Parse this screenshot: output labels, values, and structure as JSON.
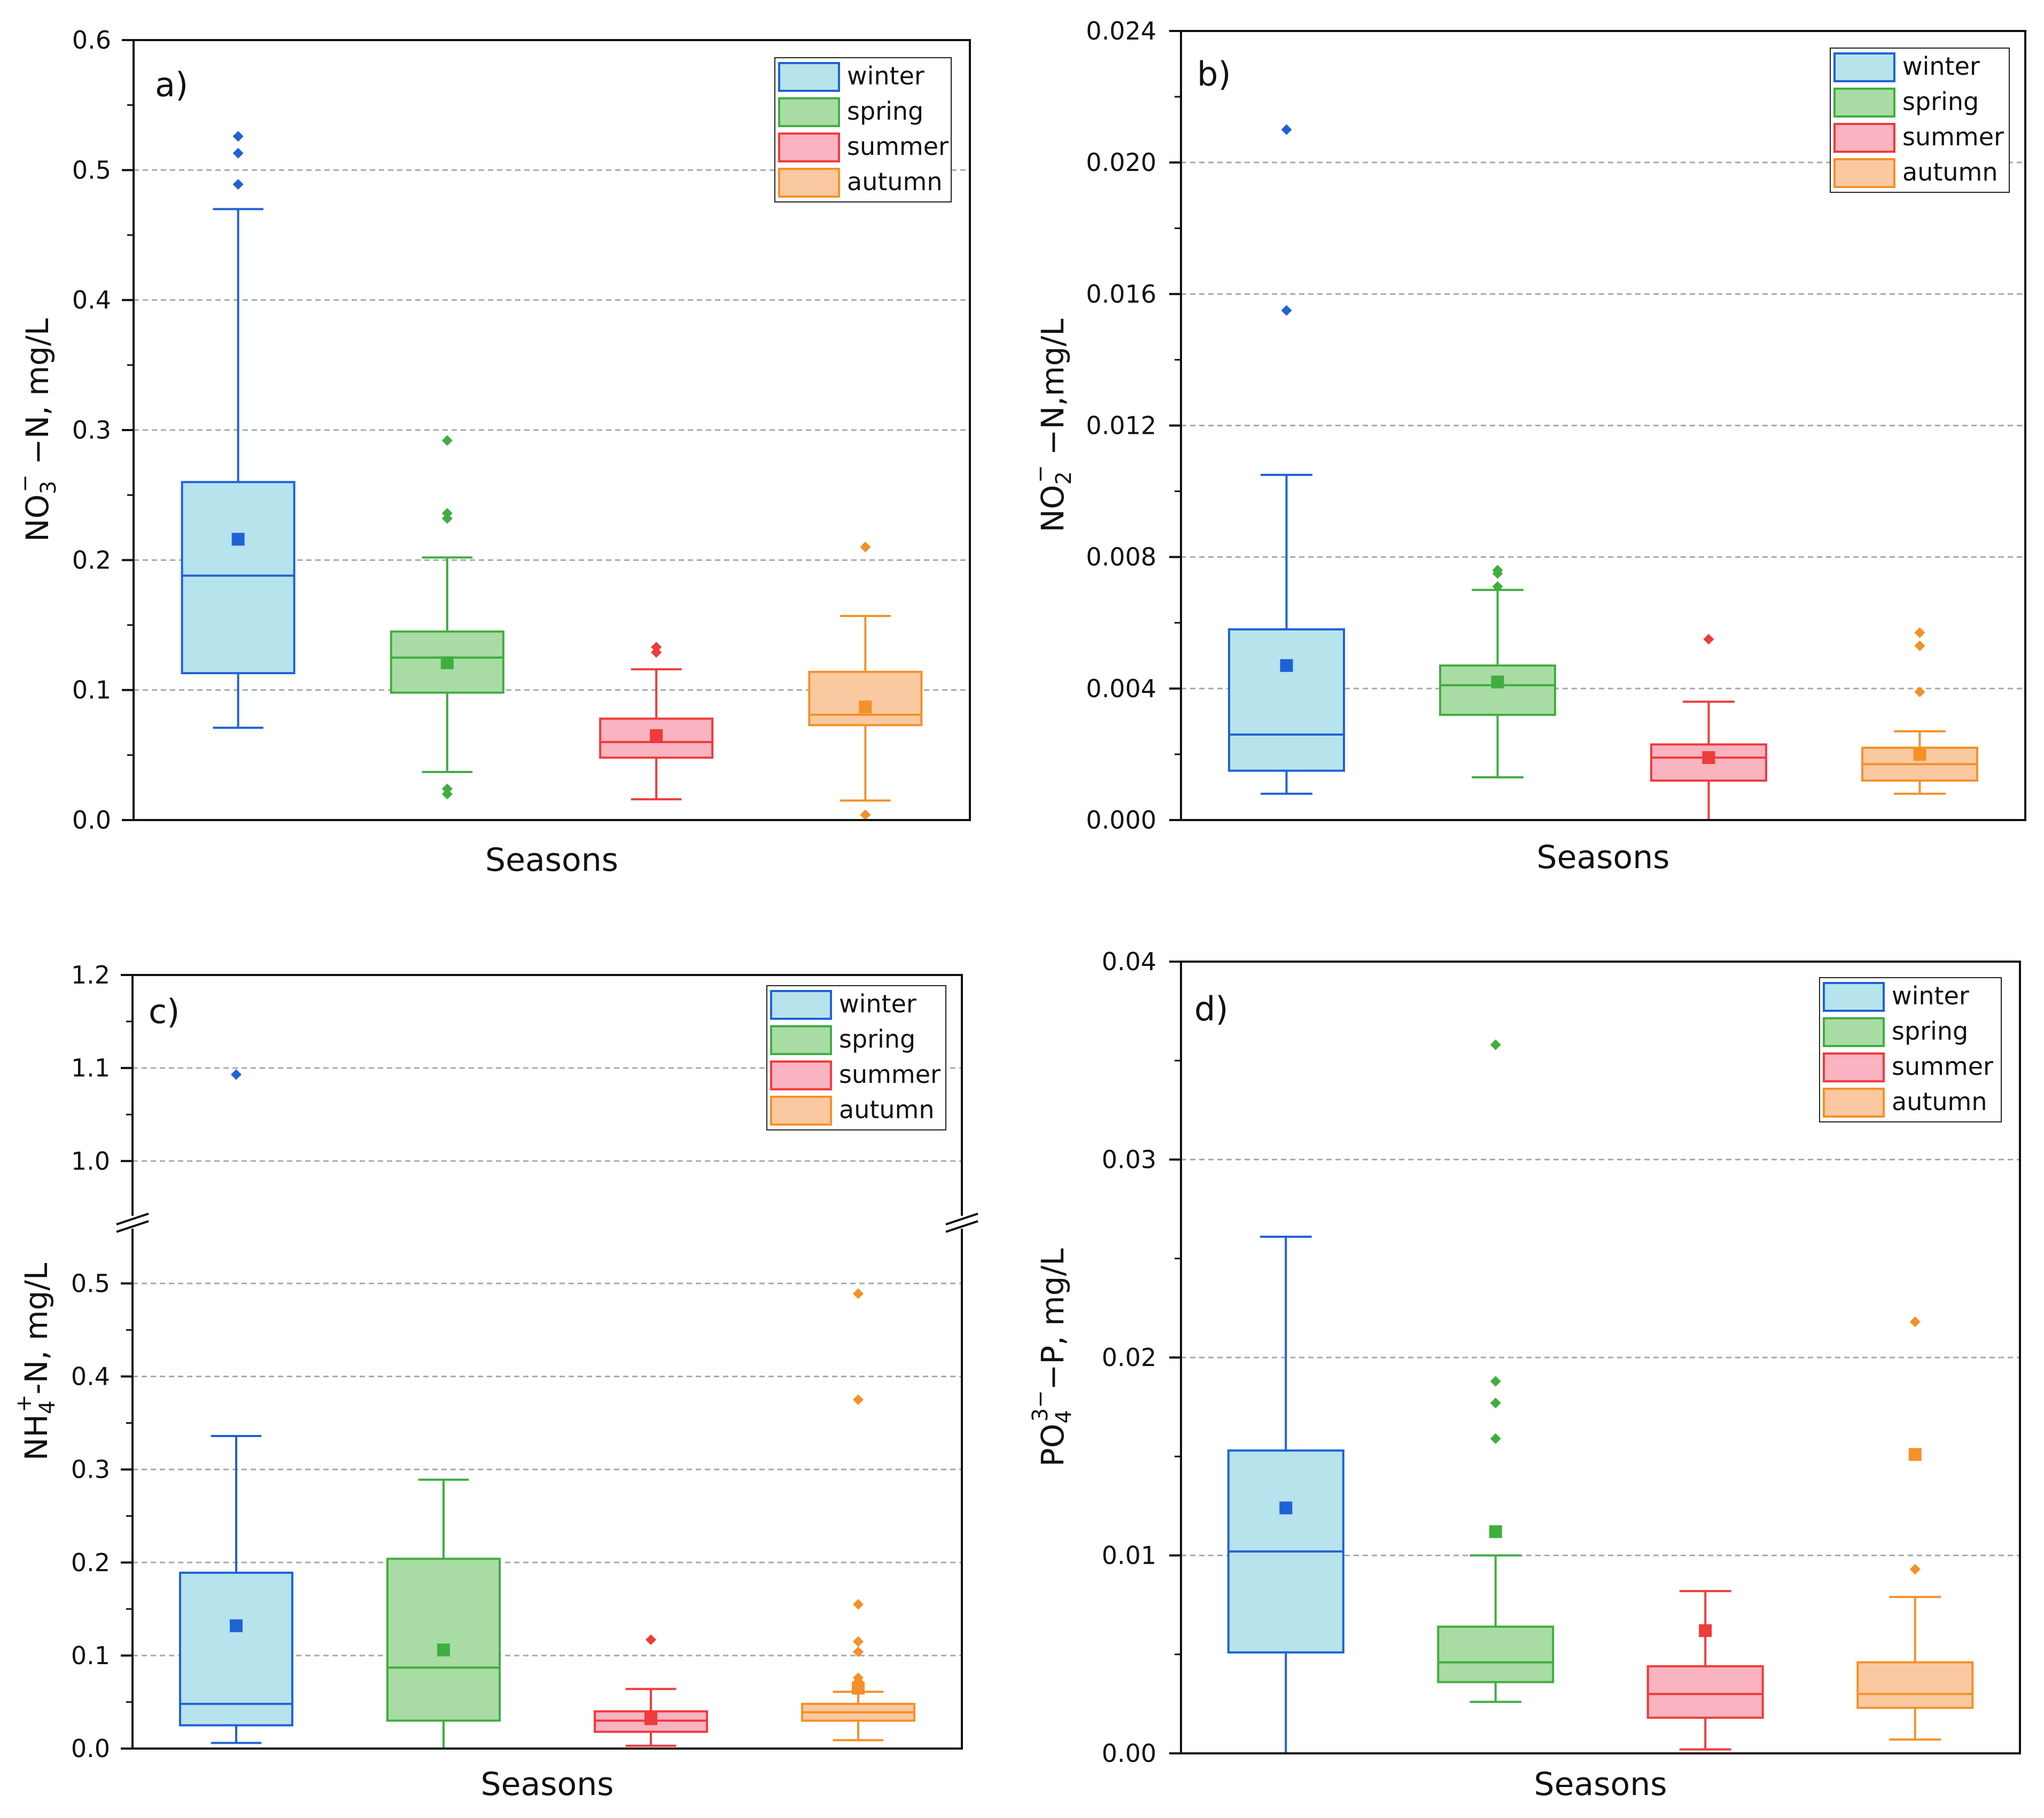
{
  "colors": {
    "winter": {
      "stroke": "#1f62d6",
      "fill": "#b7e3ec"
    },
    "spring": {
      "stroke": "#3fae3f",
      "fill": "#a9dca5"
    },
    "summer": {
      "stroke": "#ef3b3b",
      "fill": "#f9b3c1"
    },
    "autumn": {
      "stroke": "#f59028",
      "fill": "#fbc9a1"
    },
    "axis": "#111111",
    "grid": "#aaaaaa"
  },
  "chart_data": [
    {
      "type": "box",
      "panel_label": "a)",
      "title": "",
      "xlabel": "Seasons",
      "ylabel": "NO3− −N, mg/L",
      "ylabel_parts": {
        "base": "NO",
        "sub": "3",
        "sup": "−",
        "rest": " −N, mg/L"
      },
      "ylim": [
        0,
        0.6
      ],
      "yticks": [
        0.0,
        0.1,
        0.2,
        0.3,
        0.4,
        0.5,
        0.6
      ],
      "ytick_labels": [
        "0.0",
        "0.1",
        "0.2",
        "0.3",
        "0.4",
        "0.5",
        "0.6"
      ],
      "minor_ticks": [
        0.05,
        0.15,
        0.25,
        0.35,
        0.45,
        0.55
      ],
      "gridlines": [
        0.1,
        0.2,
        0.3,
        0.4,
        0.5
      ],
      "legend": {
        "position": "top-right",
        "entries": [
          "winter",
          "spring",
          "summer",
          "autumn"
        ]
      },
      "series": [
        {
          "name": "winter",
          "whisker_low": 0.071,
          "q1": 0.113,
          "median": 0.188,
          "q3": 0.26,
          "whisker_high": 0.47,
          "mean": 0.216,
          "outliers": [
            0.489,
            0.513,
            0.526
          ]
        },
        {
          "name": "spring",
          "whisker_low": 0.037,
          "q1": 0.098,
          "median": 0.125,
          "q3": 0.145,
          "whisker_high": 0.202,
          "mean": 0.121,
          "outliers": [
            0.02,
            0.024,
            0.232,
            0.236,
            0.292
          ]
        },
        {
          "name": "summer",
          "whisker_low": 0.016,
          "q1": 0.048,
          "median": 0.06,
          "q3": 0.078,
          "whisker_high": 0.116,
          "mean": 0.065,
          "outliers": [
            0.129,
            0.133
          ]
        },
        {
          "name": "autumn",
          "whisker_low": 0.015,
          "q1": 0.073,
          "median": 0.081,
          "q3": 0.114,
          "whisker_high": 0.157,
          "mean": 0.087,
          "outliers": [
            0.004,
            0.21
          ]
        }
      ]
    },
    {
      "type": "box",
      "panel_label": "b)",
      "title": "",
      "xlabel": "Seasons",
      "ylabel": "NO2− −N,mg/L",
      "ylabel_parts": {
        "base": "NO",
        "sub": "2",
        "sup": "−",
        "rest": " −N,mg/L"
      },
      "ylim": [
        0,
        0.024
      ],
      "yticks": [
        0.0,
        0.004,
        0.008,
        0.012,
        0.016,
        0.02,
        0.024
      ],
      "ytick_labels": [
        "0.000",
        "0.004",
        "0.008",
        "0.012",
        "0.016",
        "0.020",
        "0.024"
      ],
      "minor_ticks": [
        0.002,
        0.006,
        0.01,
        0.014,
        0.018,
        0.022
      ],
      "gridlines": [
        0.004,
        0.008,
        0.012,
        0.016,
        0.02
      ],
      "legend": {
        "position": "top-right",
        "entries": [
          "winter",
          "spring",
          "summer",
          "autumn"
        ]
      },
      "series": [
        {
          "name": "winter",
          "whisker_low": 0.0008,
          "q1": 0.0015,
          "median": 0.0026,
          "q3": 0.0058,
          "whisker_high": 0.0105,
          "mean": 0.0047,
          "outliers": [
            0.0155,
            0.021
          ]
        },
        {
          "name": "spring",
          "whisker_low": 0.0013,
          "q1": 0.0032,
          "median": 0.0041,
          "q3": 0.0047,
          "whisker_high": 0.007,
          "mean": 0.0042,
          "outliers": [
            0.0071,
            0.0075,
            0.0076
          ]
        },
        {
          "name": "summer",
          "whisker_low": 0.0,
          "q1": 0.0012,
          "median": 0.0019,
          "q3": 0.0023,
          "whisker_high": 0.0036,
          "mean": 0.0019,
          "outliers": [
            0.0055
          ]
        },
        {
          "name": "autumn",
          "whisker_low": 0.0008,
          "q1": 0.0012,
          "median": 0.0017,
          "q3": 0.0022,
          "whisker_high": 0.0027,
          "mean": 0.002,
          "outliers": [
            0.0039,
            0.0053,
            0.0057
          ]
        }
      ]
    },
    {
      "type": "box",
      "panel_label": "c)",
      "title": "",
      "xlabel": "Seasons",
      "ylabel": "NH4+-N, mg/L",
      "ylabel_parts": {
        "base": "NH",
        "sub": "4",
        "sup": "+",
        "rest": "-N, mg/L"
      },
      "ylim": [
        0,
        1.2
      ],
      "axis_break": [
        0.55,
        0.95
      ],
      "yticks": [
        0.0,
        0.1,
        0.2,
        0.3,
        0.4,
        0.5,
        1.0,
        1.1,
        1.2
      ],
      "ytick_labels": [
        "0.0",
        "0.1",
        "0.2",
        "0.3",
        "0.4",
        "0.5",
        "1.0",
        "1.1",
        "1.2"
      ],
      "minor_ticks": [
        0.05,
        0.15,
        0.25,
        0.35,
        0.45,
        1.05,
        1.15
      ],
      "gridlines": [
        0.1,
        0.2,
        0.3,
        0.4,
        0.5,
        1.0,
        1.1
      ],
      "legend": {
        "position": "top-right",
        "entries": [
          "winter",
          "spring",
          "summer",
          "autumn"
        ]
      },
      "series": [
        {
          "name": "winter",
          "whisker_low": 0.006,
          "q1": 0.025,
          "median": 0.048,
          "q3": 0.189,
          "whisker_high": 0.336,
          "mean": 0.132,
          "outliers": [
            1.093
          ]
        },
        {
          "name": "spring",
          "whisker_low": 0.0,
          "q1": 0.03,
          "median": 0.087,
          "q3": 0.204,
          "whisker_high": 0.289,
          "mean": 0.106,
          "outliers": []
        },
        {
          "name": "summer",
          "whisker_low": 0.003,
          "q1": 0.018,
          "median": 0.03,
          "q3": 0.04,
          "whisker_high": 0.064,
          "mean": 0.032,
          "outliers": [
            0.117
          ]
        },
        {
          "name": "autumn",
          "whisker_low": 0.009,
          "q1": 0.03,
          "median": 0.039,
          "q3": 0.048,
          "whisker_high": 0.061,
          "mean": 0.065,
          "outliers": [
            0.068,
            0.072,
            0.076,
            0.104,
            0.115,
            0.155,
            0.375,
            0.489
          ]
        }
      ]
    },
    {
      "type": "box",
      "panel_label": "d)",
      "title": "",
      "xlabel": "Seasons",
      "ylabel": "PO43−−P, mg/L",
      "ylabel_parts": {
        "base": "PO",
        "sub": "4",
        "sup": "3−",
        "rest": "−P, mg/L"
      },
      "ylim": [
        0,
        0.04
      ],
      "yticks": [
        0.0,
        0.01,
        0.02,
        0.03,
        0.04
      ],
      "ytick_labels": [
        "0.00",
        "0.01",
        "0.02",
        "0.03",
        "0.04"
      ],
      "minor_ticks": [
        0.005,
        0.015,
        0.025,
        0.035
      ],
      "gridlines": [
        0.01,
        0.02,
        0.03
      ],
      "legend": {
        "position": "top-right",
        "entries": [
          "winter",
          "spring",
          "summer",
          "autumn"
        ]
      },
      "series": [
        {
          "name": "winter",
          "whisker_low": 0.0,
          "q1": 0.0051,
          "median": 0.0102,
          "q3": 0.0153,
          "whisker_high": 0.0261,
          "mean": 0.0124,
          "outliers": []
        },
        {
          "name": "spring",
          "whisker_low": 0.0026,
          "q1": 0.0036,
          "median": 0.0046,
          "q3": 0.0064,
          "whisker_high": 0.01,
          "mean": 0.0112,
          "outliers": [
            0.0159,
            0.0177,
            0.0188,
            0.0358
          ]
        },
        {
          "name": "summer",
          "whisker_low": 0.0002,
          "q1": 0.0018,
          "median": 0.003,
          "q3": 0.0044,
          "whisker_high": 0.0082,
          "mean": 0.0062,
          "outliers": []
        },
        {
          "name": "autumn",
          "whisker_low": 0.0007,
          "q1": 0.0023,
          "median": 0.003,
          "q3": 0.0046,
          "whisker_high": 0.0079,
          "mean": 0.0151,
          "outliers": [
            0.0093,
            0.0218
          ]
        }
      ]
    }
  ]
}
